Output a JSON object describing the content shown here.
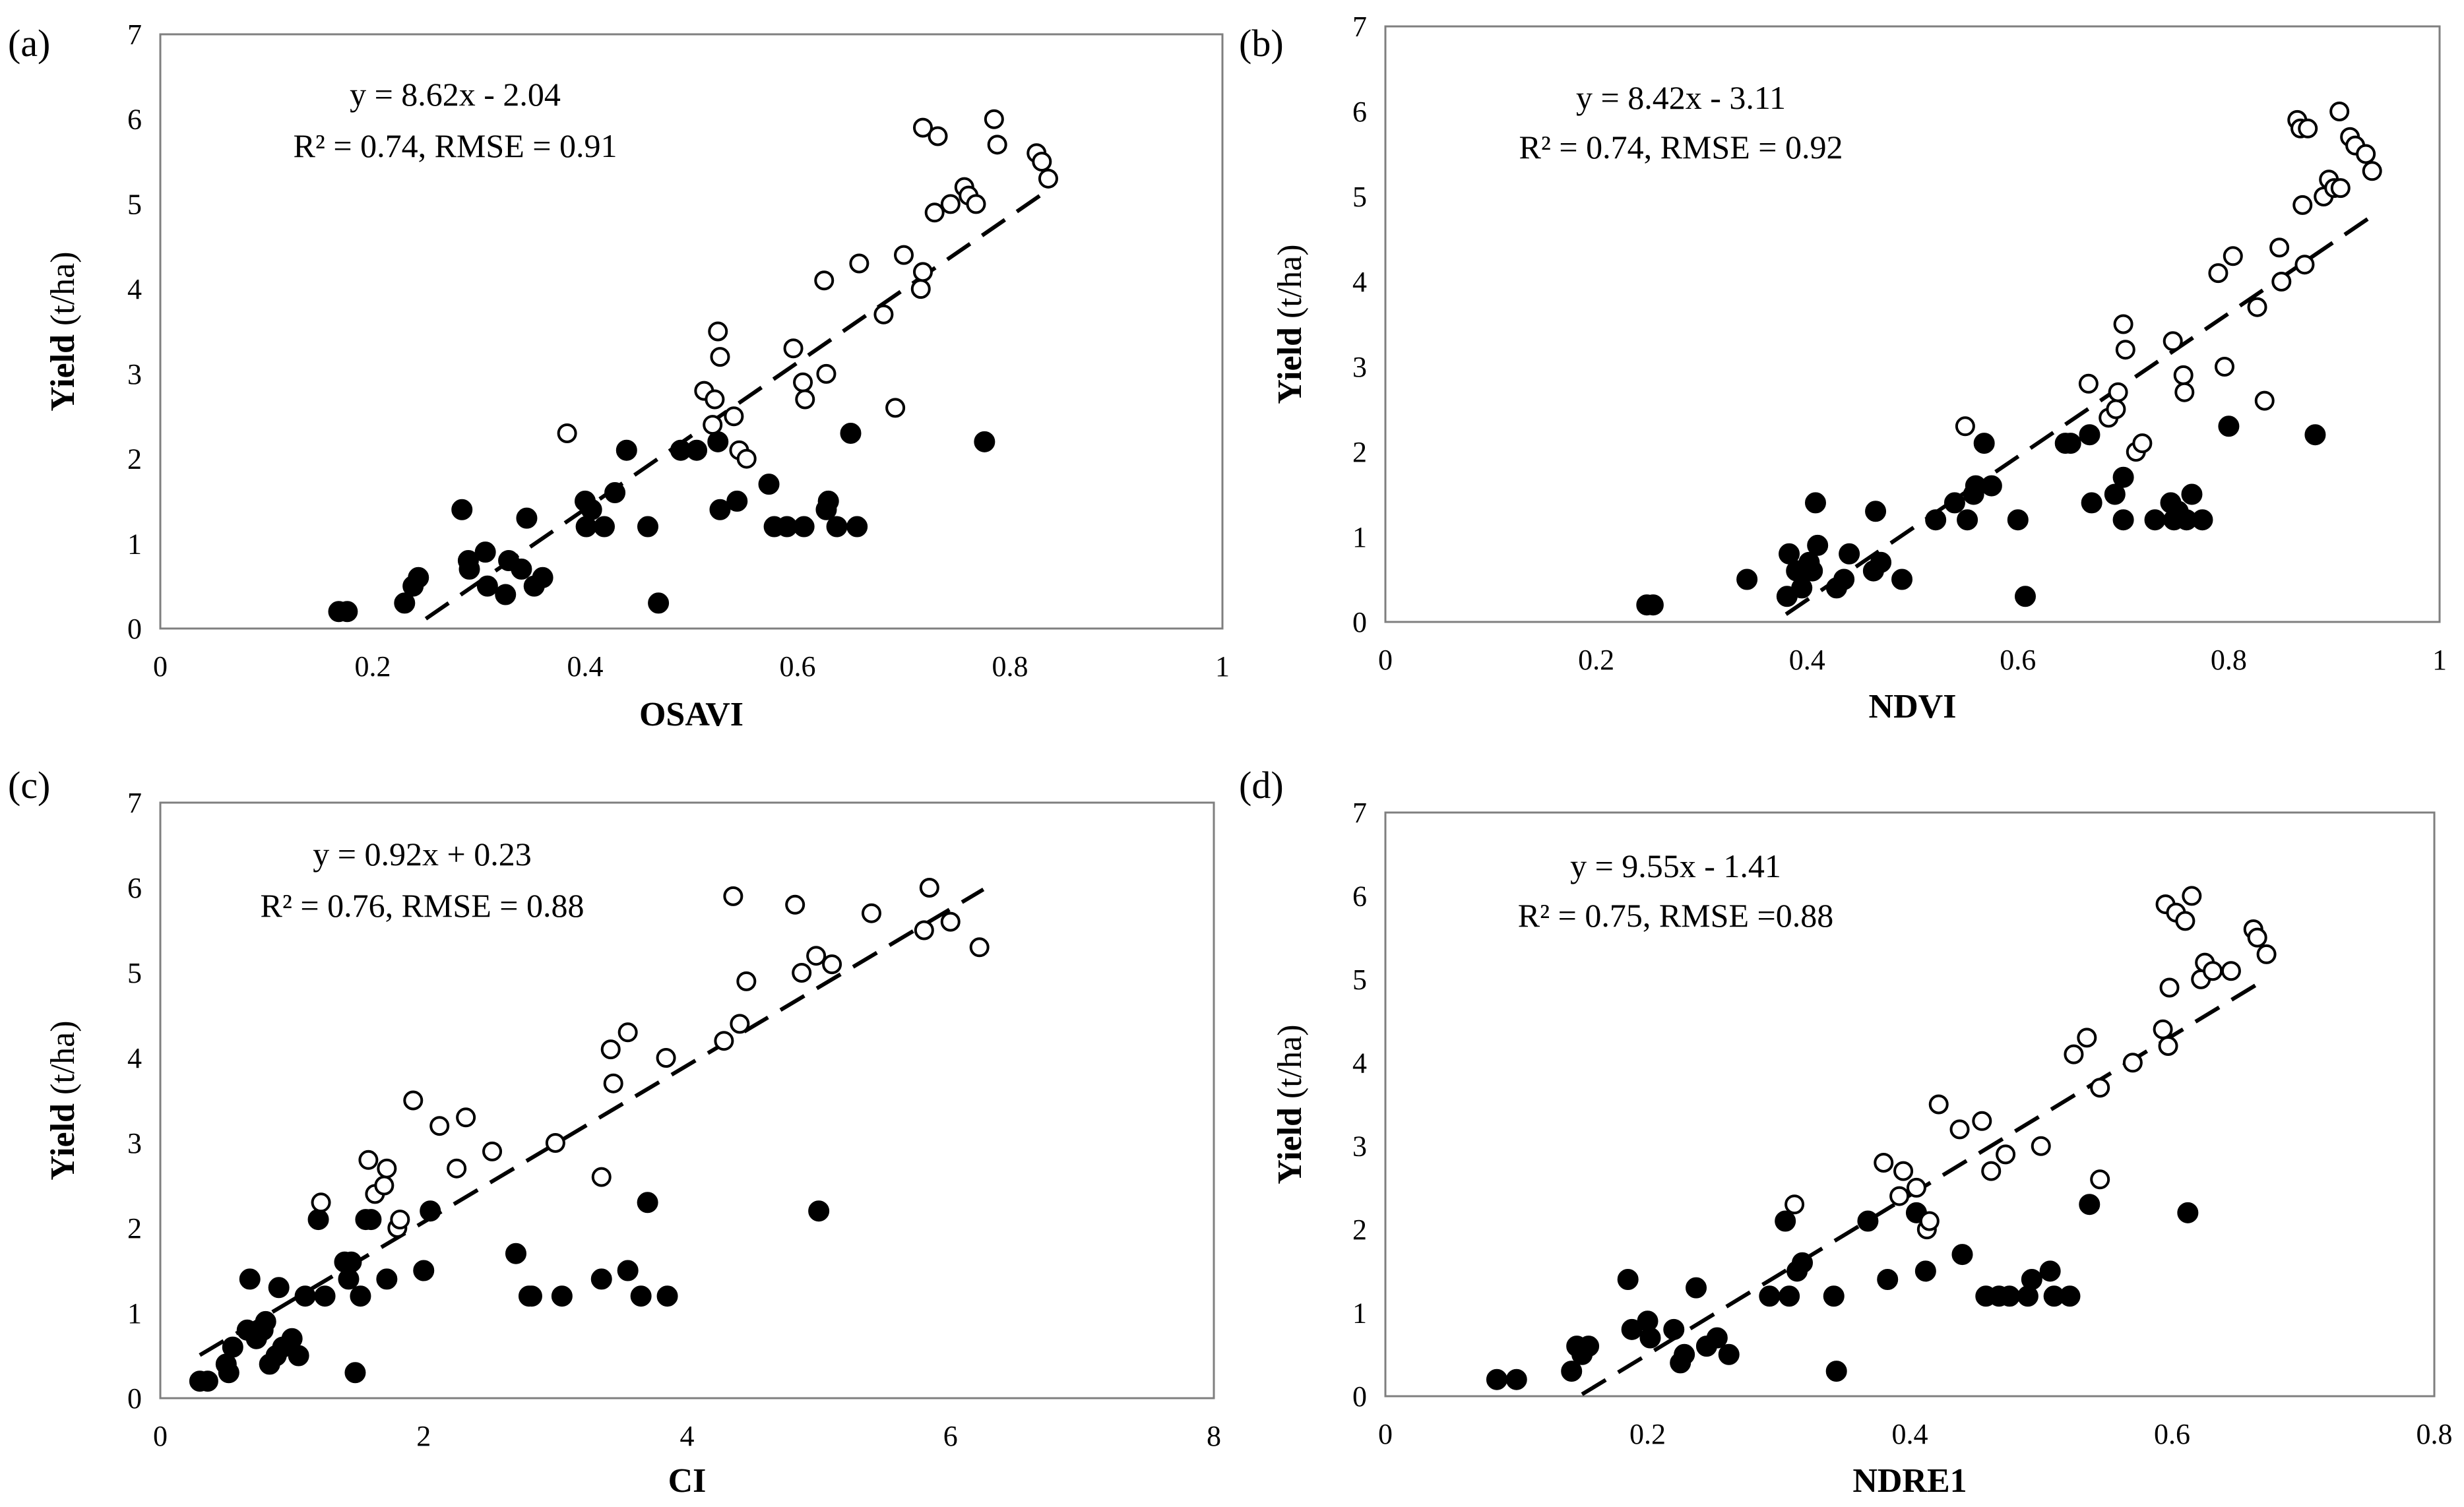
{
  "figure": {
    "y_label_bold": "Yield",
    "y_label_unit": " (t/ha)"
  },
  "chart_data": [
    {
      "type": "scatter",
      "panel_label": "(a)",
      "xlabel": "OSAVI",
      "xlim": [
        0,
        1
      ],
      "ylim": [
        0,
        7
      ],
      "xticks": [
        0,
        0.2,
        0.4,
        0.6,
        0.8,
        1
      ],
      "xtick_labels": [
        "0",
        "0.2",
        "0.4",
        "0.6",
        "0.8",
        "1"
      ],
      "yticks": [
        0,
        1,
        2,
        3,
        4,
        5,
        6,
        7
      ],
      "ytick_labels": [
        "0",
        "1",
        "2",
        "3",
        "4",
        "5",
        "6",
        "7"
      ],
      "equation": "y = 8.62x - 2.04",
      "stats": "R² = 0.74, RMSE = 0.91",
      "fit_line": {
        "x": [
          0.25,
          0.835
        ],
        "y": [
          0.115,
          5.158
        ]
      },
      "series": [
        {
          "name": "filled",
          "x": [
            0.168,
            0.176,
            0.23,
            0.238,
            0.243,
            0.284,
            0.29,
            0.291,
            0.306,
            0.308,
            0.325,
            0.328,
            0.34,
            0.345,
            0.352,
            0.36,
            0.4,
            0.401,
            0.406,
            0.418,
            0.428,
            0.439,
            0.459,
            0.469,
            0.49,
            0.505,
            0.525,
            0.527,
            0.543,
            0.573,
            0.578,
            0.59,
            0.606,
            0.627,
            0.629,
            0.637,
            0.65,
            0.656,
            0.776
          ],
          "y": [
            0.2,
            0.2,
            0.3,
            0.5,
            0.6,
            1.4,
            0.8,
            0.7,
            0.9,
            0.5,
            0.4,
            0.8,
            0.7,
            1.3,
            0.5,
            0.6,
            1.5,
            1.2,
            1.4,
            1.2,
            1.6,
            2.1,
            1.2,
            0.3,
            2.1,
            2.1,
            2.2,
            1.4,
            1.5,
            1.7,
            1.2,
            1.2,
            1.2,
            1.4,
            1.5,
            1.2,
            2.3,
            1.2,
            2.2
          ]
        },
        {
          "name": "open",
          "x": [
            0.383,
            0.512,
            0.52,
            0.522,
            0.525,
            0.527,
            0.54,
            0.545,
            0.552,
            0.596,
            0.605,
            0.607,
            0.625,
            0.627,
            0.658,
            0.681,
            0.692,
            0.7,
            0.716,
            0.718,
            0.718,
            0.729,
            0.732,
            0.744,
            0.757,
            0.761,
            0.768,
            0.785,
            0.788,
            0.825,
            0.83,
            0.836
          ],
          "y": [
            2.3,
            2.8,
            2.4,
            2.7,
            3.5,
            3.2,
            2.5,
            2.1,
            2.0,
            3.3,
            2.9,
            2.7,
            4.1,
            3.0,
            4.3,
            3.7,
            2.6,
            4.4,
            4.0,
            4.2,
            5.9,
            4.9,
            5.8,
            5.0,
            5.2,
            5.1,
            5.0,
            6.0,
            5.7,
            5.6,
            5.5,
            5.3
          ]
        }
      ]
    },
    {
      "type": "scatter",
      "panel_label": "(b)",
      "xlabel": "NDVI",
      "xlim": [
        0,
        1
      ],
      "ylim": [
        0,
        7
      ],
      "xticks": [
        0,
        0.2,
        0.4,
        0.6,
        0.8,
        1
      ],
      "xtick_labels": [
        "0",
        "0.2",
        "0.4",
        "0.6",
        "0.8",
        "1"
      ],
      "yticks": [
        0,
        1,
        2,
        3,
        4,
        5,
        6,
        7
      ],
      "ytick_labels": [
        "0",
        "1",
        "2",
        "3",
        "4",
        "5",
        "6",
        "7"
      ],
      "equation": "y = 8.42x - 3.11",
      "stats": "R² = 0.74, RMSE = 0.92",
      "fit_line": {
        "x": [
          0.38,
          0.935
        ],
        "y": [
          0.09,
          4.763
        ]
      },
      "series": [
        {
          "name": "filled",
          "x": [
            0.248,
            0.254,
            0.343,
            0.381,
            0.383,
            0.39,
            0.391,
            0.395,
            0.402,
            0.405,
            0.408,
            0.41,
            0.428,
            0.435,
            0.44,
            0.463,
            0.465,
            0.47,
            0.49,
            0.522,
            0.54,
            0.552,
            0.558,
            0.56,
            0.568,
            0.575,
            0.6,
            0.607,
            0.645,
            0.65,
            0.668,
            0.67,
            0.692,
            0.7,
            0.7,
            0.73,
            0.745,
            0.748,
            0.752,
            0.76,
            0.765,
            0.775,
            0.8,
            0.882
          ],
          "y": [
            0.2,
            0.2,
            0.5,
            0.3,
            0.8,
            0.6,
            0.6,
            0.4,
            0.7,
            0.6,
            1.4,
            0.9,
            0.4,
            0.5,
            0.8,
            0.6,
            1.3,
            0.7,
            0.5,
            1.2,
            1.4,
            1.2,
            1.5,
            1.6,
            2.1,
            1.6,
            1.2,
            0.3,
            2.1,
            2.1,
            2.2,
            1.4,
            1.5,
            1.7,
            1.2,
            1.2,
            1.4,
            1.2,
            1.3,
            1.2,
            1.5,
            1.2,
            2.3,
            2.2
          ]
        },
        {
          "name": "open",
          "x": [
            0.55,
            0.667,
            0.686,
            0.693,
            0.695,
            0.7,
            0.702,
            0.712,
            0.718,
            0.747,
            0.757,
            0.758,
            0.79,
            0.796,
            0.804,
            0.827,
            0.834,
            0.848,
            0.85,
            0.865,
            0.868,
            0.87,
            0.872,
            0.875,
            0.89,
            0.895,
            0.9,
            0.905,
            0.906,
            0.915,
            0.92,
            0.93,
            0.936
          ],
          "y": [
            2.3,
            2.8,
            2.4,
            2.5,
            2.7,
            3.5,
            3.2,
            2.0,
            2.1,
            3.3,
            2.9,
            2.7,
            4.1,
            3.0,
            4.3,
            3.7,
            2.6,
            4.4,
            4.0,
            5.9,
            5.8,
            4.9,
            4.2,
            5.8,
            5.0,
            5.2,
            5.1,
            6.0,
            5.1,
            5.7,
            5.6,
            5.5,
            5.3
          ]
        }
      ]
    },
    {
      "type": "scatter",
      "panel_label": "(c)",
      "xlabel": "CI",
      "xlim": [
        0,
        8
      ],
      "ylim": [
        0,
        7
      ],
      "xticks": [
        0,
        2,
        4,
        6,
        8
      ],
      "xtick_labels": [
        "0",
        "2",
        "4",
        "6",
        "8"
      ],
      "yticks": [
        0,
        1,
        2,
        3,
        4,
        5,
        6,
        7
      ],
      "ytick_labels": [
        "0",
        "1",
        "2",
        "3",
        "4",
        "5",
        "6",
        "7"
      ],
      "equation": "y = 0.92x + 0.23",
      "stats": "R² = 0.76, RMSE = 0.88",
      "fit_line": {
        "x": [
          0.3,
          6.25
        ],
        "y": [
          0.506,
          5.98
        ]
      },
      "series": [
        {
          "name": "filled",
          "x": [
            0.3,
            0.36,
            0.5,
            0.52,
            0.55,
            0.66,
            0.68,
            0.73,
            0.78,
            0.8,
            0.83,
            0.88,
            0.9,
            0.93,
            1.0,
            1.05,
            1.1,
            1.2,
            1.25,
            1.4,
            1.43,
            1.45,
            1.48,
            1.52,
            1.56,
            1.6,
            1.72,
            2.05,
            2.0,
            2.7,
            2.8,
            2.82,
            3.05,
            3.35,
            3.55,
            3.65,
            3.7,
            3.85,
            5.0
          ],
          "y": [
            0.2,
            0.2,
            0.4,
            0.3,
            0.6,
            0.8,
            1.4,
            0.7,
            0.8,
            0.9,
            0.4,
            0.5,
            1.3,
            0.6,
            0.7,
            0.5,
            1.2,
            2.1,
            1.2,
            1.6,
            1.4,
            1.6,
            0.3,
            1.2,
            2.1,
            2.1,
            1.4,
            2.2,
            1.5,
            1.7,
            1.2,
            1.2,
            1.2,
            1.4,
            1.5,
            1.2,
            2.3,
            1.2,
            2.2
          ]
        },
        {
          "name": "open",
          "x": [
            1.22,
            1.58,
            1.63,
            1.7,
            1.72,
            1.8,
            1.82,
            1.92,
            2.12,
            2.25,
            2.32,
            2.52,
            3.0,
            3.35,
            3.42,
            3.44,
            3.55,
            3.84,
            4.28,
            4.35,
            4.4,
            4.45,
            4.82,
            4.87,
            4.98,
            5.1,
            5.4,
            5.8,
            5.84,
            6.0,
            6.22
          ],
          "y": [
            2.3,
            2.8,
            2.4,
            2.5,
            2.7,
            2.0,
            2.1,
            3.5,
            3.2,
            2.7,
            3.3,
            2.9,
            3.0,
            2.6,
            4.1,
            3.7,
            4.3,
            4.0,
            4.2,
            5.9,
            4.4,
            4.9,
            5.8,
            5.0,
            5.2,
            5.1,
            5.7,
            5.5,
            6.0,
            5.6,
            5.3
          ]
        }
      ]
    },
    {
      "type": "scatter",
      "panel_label": "(d)",
      "xlabel": "NDRE1",
      "xlim": [
        0,
        0.8
      ],
      "ylim": [
        0,
        7
      ],
      "xticks": [
        0,
        0.2,
        0.4,
        0.6,
        0.8
      ],
      "xtick_labels": [
        "0",
        "0.2",
        "0.4",
        "0.6",
        "0.8"
      ],
      "yticks": [
        0,
        1,
        2,
        3,
        4,
        5,
        6,
        7
      ],
      "ytick_labels": [
        "0",
        "1",
        "2",
        "3",
        "4",
        "5",
        "6",
        "7"
      ],
      "equation": "y = 9.55x - 1.41",
      "stats": "R² = 0.75, RMSE =0.88",
      "fit_line": {
        "x": [
          0.15,
          0.672
        ],
        "y": [
          0.023,
          5.008
        ]
      },
      "series": [
        {
          "name": "filled",
          "x": [
            0.085,
            0.1,
            0.142,
            0.146,
            0.15,
            0.155,
            0.185,
            0.188,
            0.2,
            0.202,
            0.22,
            0.225,
            0.228,
            0.237,
            0.245,
            0.253,
            0.262,
            0.293,
            0.305,
            0.308,
            0.314,
            0.318,
            0.342,
            0.344,
            0.368,
            0.383,
            0.405,
            0.412,
            0.44,
            0.458,
            0.468,
            0.476,
            0.49,
            0.493,
            0.507,
            0.51,
            0.522,
            0.537,
            0.612
          ],
          "y": [
            0.2,
            0.2,
            0.3,
            0.6,
            0.5,
            0.6,
            1.4,
            0.8,
            0.9,
            0.7,
            0.8,
            0.4,
            0.5,
            1.3,
            0.6,
            0.7,
            0.5,
            1.2,
            2.1,
            1.2,
            1.5,
            1.6,
            1.2,
            0.3,
            2.1,
            1.4,
            2.2,
            1.5,
            1.7,
            1.2,
            1.2,
            1.2,
            1.2,
            1.4,
            1.5,
            1.2,
            1.2,
            2.3,
            2.2
          ]
        },
        {
          "name": "open",
          "x": [
            0.312,
            0.38,
            0.392,
            0.395,
            0.405,
            0.413,
            0.415,
            0.422,
            0.438,
            0.455,
            0.462,
            0.473,
            0.5,
            0.525,
            0.535,
            0.545,
            0.545,
            0.57,
            0.593,
            0.595,
            0.597,
            0.598,
            0.603,
            0.61,
            0.615,
            0.622,
            0.625,
            0.631,
            0.645,
            0.662,
            0.665,
            0.672
          ],
          "y": [
            2.3,
            2.8,
            2.4,
            2.7,
            2.5,
            2.0,
            2.1,
            3.5,
            3.2,
            3.3,
            2.7,
            2.9,
            3.0,
            4.1,
            4.3,
            3.7,
            2.6,
            4.0,
            4.4,
            5.9,
            4.2,
            4.9,
            5.8,
            5.7,
            6.0,
            5.0,
            5.2,
            5.1,
            5.1,
            5.6,
            5.5,
            5.3
          ]
        }
      ]
    }
  ]
}
